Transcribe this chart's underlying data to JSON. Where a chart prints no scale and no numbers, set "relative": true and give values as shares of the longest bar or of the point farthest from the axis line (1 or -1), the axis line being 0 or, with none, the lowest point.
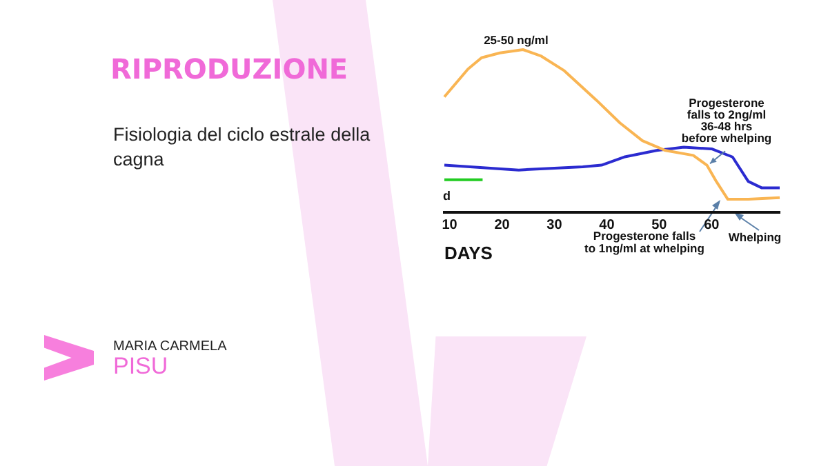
{
  "chart_data": {
    "type": "line",
    "title": "RIPRODUZIONE",
    "subtitle": "Fisiologia del ciclo estrale della cagna",
    "xlabel": "DAYS",
    "relative": true,
    "xlim": [
      9,
      73
    ],
    "xticks": [
      10,
      20,
      30,
      40,
      50,
      60
    ],
    "grid": false,
    "legend": false,
    "marker": "none",
    "line_style": "solid",
    "series": [
      {
        "color": "#f9b553",
        "x": [
          9,
          13.5,
          16.1,
          19.6,
          24,
          27.5,
          31.9,
          38,
          42.5,
          46.8,
          51.2,
          56.5,
          59.1,
          60.9,
          63.1,
          67,
          73
        ],
        "values": [
          0.71,
          0.88,
          0.95,
          0.98,
          1,
          0.96,
          0.87,
          0.69,
          0.55,
          0.44,
          0.38,
          0.35,
          0.29,
          0.19,
          0.08,
          0.08,
          0.09
        ]
      },
      {
        "color": "#2b2bd0",
        "x": [
          9,
          23.2,
          35.4,
          39,
          43.3,
          49.5,
          54.7,
          60,
          64,
          67,
          69.6,
          73
        ],
        "values": [
          0.29,
          0.26,
          0.28,
          0.29,
          0.34,
          0.38,
          0.4,
          0.39,
          0.34,
          0.19,
          0.15,
          0.15
        ]
      },
      {
        "color": "#22cc22",
        "x": [
          9,
          16.3
        ],
        "values": [
          0.2,
          0.2
        ]
      }
    ],
    "annotations": [
      {
        "text": "25-50 ng/ml",
        "x": 24,
        "y": 1
      },
      {
        "text": "Progesterone\nfalls to 2ng/ml\n36-48 hrs\nbefore whelping",
        "x": 59.7,
        "y": 0.3
      },
      "d",
      "Progesterone falls\nto 1ng/ml at whelping",
      "Whelping",
      "MARIA CARMELA",
      "PISU"
    ]
  }
}
